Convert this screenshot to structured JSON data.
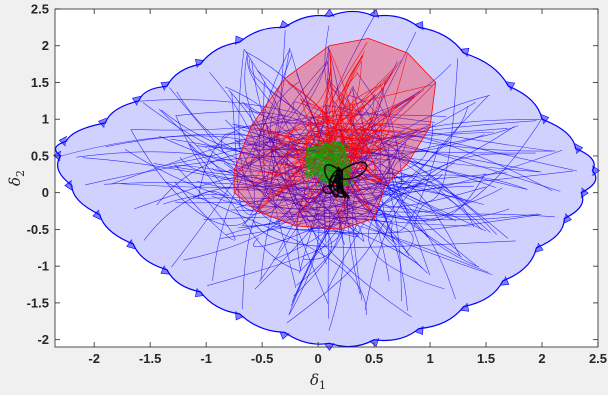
{
  "chart_data": {
    "type": "line",
    "title": "",
    "xlabel": {
      "symbol": "δ",
      "subscript": "1"
    },
    "ylabel": {
      "symbol": "δ",
      "subscript": "2"
    },
    "xlim": [
      -2.35,
      2.5
    ],
    "ylim": [
      -2.1,
      2.5
    ],
    "xticks": [
      -2,
      -1.5,
      -1,
      -0.5,
      0,
      0.5,
      1,
      1.5,
      2,
      2.5
    ],
    "yticks": [
      -2,
      -1.5,
      -1,
      -0.5,
      0,
      0.5,
      1,
      1.5,
      2,
      2.5
    ],
    "xtick_labels": [
      "-2",
      "-1.5",
      "-1",
      "-0.5",
      "0",
      "0.5",
      "1",
      "1.5",
      "2",
      "2.5"
    ],
    "ytick_labels": [
      "-2",
      "-1.5",
      "-1",
      "-0.5",
      "0",
      "0.5",
      "1",
      "1.5",
      "2",
      "2.5"
    ],
    "grid": false,
    "legend": "none",
    "series": [
      {
        "color": "#0000ff",
        "description": "outer trajectory envelope, scalloped boundary",
        "envelope": [
          [
            -2.3,
            0.5
          ],
          [
            -2.25,
            0.7
          ],
          [
            -1.9,
            0.95
          ],
          [
            -1.6,
            1.25
          ],
          [
            -1.35,
            1.45
          ],
          [
            -1.05,
            1.75
          ],
          [
            -0.7,
            2.05
          ],
          [
            -0.3,
            2.25
          ],
          [
            0.1,
            2.4
          ],
          [
            0.5,
            2.4
          ],
          [
            0.9,
            2.25
          ],
          [
            1.3,
            1.9
          ],
          [
            1.7,
            1.45
          ],
          [
            2.0,
            1.0
          ],
          [
            2.3,
            0.6
          ],
          [
            2.45,
            0.3
          ],
          [
            2.35,
            0.0
          ],
          [
            2.2,
            -0.35
          ],
          [
            1.95,
            -0.75
          ],
          [
            1.65,
            -1.2
          ],
          [
            1.3,
            -1.55
          ],
          [
            0.9,
            -1.85
          ],
          [
            0.5,
            -2.0
          ],
          [
            0.1,
            -2.05
          ],
          [
            -0.3,
            -1.9
          ],
          [
            -0.7,
            -1.65
          ],
          [
            -1.05,
            -1.35
          ],
          [
            -1.35,
            -1.05
          ],
          [
            -1.65,
            -0.7
          ],
          [
            -1.95,
            -0.3
          ],
          [
            -2.2,
            0.1
          ]
        ]
      },
      {
        "color": "#ff0000",
        "description": "intermediate trajectory region",
        "envelope": [
          [
            -0.75,
            0.3
          ],
          [
            -0.6,
            0.9
          ],
          [
            -0.3,
            1.55
          ],
          [
            0.1,
            2.0
          ],
          [
            0.45,
            2.1
          ],
          [
            0.8,
            1.9
          ],
          [
            1.05,
            1.5
          ],
          [
            1.0,
            0.9
          ],
          [
            0.8,
            0.4
          ],
          [
            0.6,
            0.1
          ],
          [
            0.5,
            -0.35
          ],
          [
            0.2,
            -0.5
          ],
          [
            -0.2,
            -0.45
          ],
          [
            -0.55,
            -0.25
          ],
          [
            -0.75,
            0.0
          ]
        ]
      },
      {
        "color": "#00b000",
        "description": "inner trajectories",
        "envelope": [
          [
            -0.1,
            0.6
          ],
          [
            0.2,
            0.7
          ],
          [
            0.3,
            0.35
          ],
          [
            0.25,
            0.1
          ],
          [
            0.05,
            0.15
          ],
          [
            -0.1,
            0.35
          ]
        ]
      },
      {
        "color": "#000000",
        "description": "core trajectory",
        "envelope": [
          [
            0.18,
            0.35
          ],
          [
            0.22,
            0.3
          ],
          [
            0.22,
            0.08
          ],
          [
            0.17,
            0.05
          ],
          [
            0.15,
            0.2
          ]
        ]
      }
    ]
  }
}
